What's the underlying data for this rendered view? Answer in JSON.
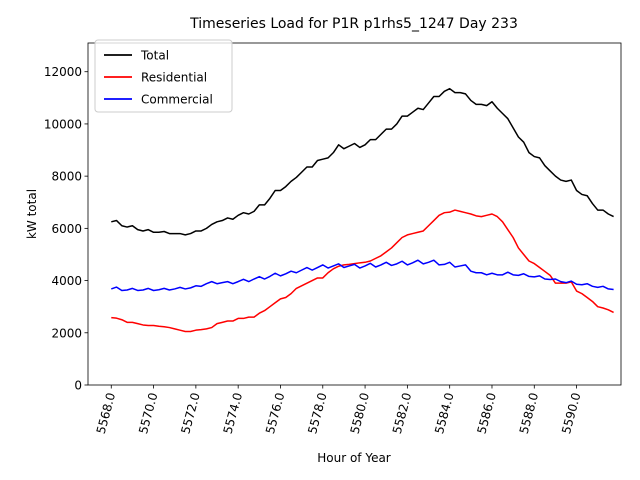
{
  "chart_data": {
    "type": "line",
    "title": "Timeseries Load for P1R p1rhs5_1247  Day 233",
    "xlabel": "Hour of Year",
    "ylabel": "kW total",
    "xlim": [
      5566.9,
      5592.1
    ],
    "ylim": [
      0,
      13100
    ],
    "xticks": [
      5568,
      5570,
      5572,
      5574,
      5576,
      5578,
      5580,
      5582,
      5584,
      5586,
      5588,
      5590
    ],
    "xtick_labels": [
      "5568.0",
      "5570.0",
      "5572.0",
      "5574.0",
      "5576.0",
      "5578.0",
      "5580.0",
      "5582.0",
      "5584.0",
      "5586.0",
      "5588.0",
      "5590.0"
    ],
    "yticks": [
      0,
      2000,
      4000,
      6000,
      8000,
      10000,
      12000
    ],
    "ytick_labels": [
      "0",
      "2000",
      "4000",
      "6000",
      "8000",
      "10000",
      "12000"
    ],
    "x_start": 5568.0,
    "x_step": 0.25,
    "grid": false,
    "legend": "top-left",
    "series": [
      {
        "name": "Total",
        "color": "#000000",
        "values": [
          6250,
          6300,
          6100,
          6050,
          6100,
          5950,
          5900,
          5950,
          5850,
          5850,
          5880,
          5800,
          5800,
          5800,
          5750,
          5800,
          5900,
          5900,
          6000,
          6150,
          6250,
          6300,
          6400,
          6350,
          6500,
          6600,
          6550,
          6650,
          6900,
          6900,
          7150,
          7450,
          7450,
          7600,
          7800,
          7950,
          8150,
          8350,
          8350,
          8600,
          8650,
          8700,
          8900,
          9200,
          9050,
          9150,
          9250,
          9100,
          9200,
          9400,
          9400,
          9600,
          9800,
          9800,
          10000,
          10300,
          10300,
          10450,
          10600,
          10550,
          10800,
          11050,
          11050,
          11250,
          11350,
          11200,
          11200,
          11150,
          10900,
          10750,
          10750,
          10700,
          10850,
          10600,
          10400,
          10200,
          9850,
          9500,
          9300,
          8900,
          8750,
          8700,
          8400,
          8200,
          8000,
          7850,
          7800,
          7850,
          7450,
          7300,
          7250,
          6950,
          6700,
          6700,
          6550,
          6450
        ]
      },
      {
        "name": "Residential",
        "color": "#ff0000",
        "values": [
          2580,
          2560,
          2500,
          2400,
          2400,
          2350,
          2300,
          2280,
          2280,
          2250,
          2230,
          2200,
          2150,
          2100,
          2050,
          2050,
          2100,
          2120,
          2150,
          2200,
          2350,
          2400,
          2450,
          2450,
          2550,
          2550,
          2600,
          2600,
          2750,
          2850,
          3000,
          3150,
          3300,
          3350,
          3500,
          3700,
          3800,
          3900,
          4000,
          4100,
          4100,
          4300,
          4450,
          4550,
          4600,
          4620,
          4650,
          4680,
          4700,
          4750,
          4850,
          4950,
          5100,
          5250,
          5450,
          5650,
          5750,
          5800,
          5850,
          5900,
          6100,
          6300,
          6500,
          6600,
          6620,
          6700,
          6650,
          6600,
          6550,
          6480,
          6450,
          6500,
          6550,
          6450,
          6250,
          5950,
          5650,
          5250,
          5000,
          4750,
          4650,
          4500,
          4350,
          4200,
          3900,
          3900,
          3900,
          3950,
          3600,
          3500,
          3350,
          3200,
          3000,
          2950,
          2880,
          2780
        ]
      },
      {
        "name": "Commercial",
        "color": "#0000ff",
        "values": [
          3680,
          3750,
          3620,
          3640,
          3700,
          3620,
          3640,
          3700,
          3620,
          3650,
          3700,
          3640,
          3680,
          3740,
          3680,
          3720,
          3800,
          3780,
          3880,
          3960,
          3880,
          3920,
          3960,
          3880,
          3960,
          4050,
          3960,
          4060,
          4150,
          4060,
          4160,
          4280,
          4180,
          4260,
          4360,
          4300,
          4400,
          4500,
          4400,
          4500,
          4600,
          4480,
          4560,
          4640,
          4500,
          4560,
          4620,
          4480,
          4560,
          4660,
          4520,
          4600,
          4700,
          4580,
          4640,
          4740,
          4600,
          4680,
          4780,
          4640,
          4700,
          4780,
          4600,
          4620,
          4700,
          4520,
          4560,
          4600,
          4360,
          4300,
          4300,
          4220,
          4280,
          4220,
          4220,
          4320,
          4220,
          4200,
          4260,
          4160,
          4140,
          4180,
          4060,
          4040,
          4060,
          3960,
          3920,
          3980,
          3860,
          3840,
          3880,
          3780,
          3740,
          3780,
          3680,
          3660
        ]
      }
    ]
  }
}
